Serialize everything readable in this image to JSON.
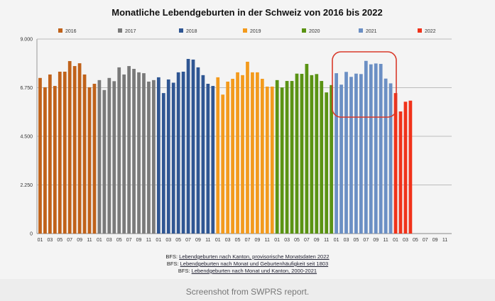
{
  "chart_data": {
    "type": "bar",
    "title": "Monatliche Lebendgeburten in der Schweiz von 2016 bis 2022",
    "xlabel": "",
    "ylabel": "",
    "ylim": [
      0,
      9000
    ],
    "yticks": [
      "0",
      "2.250",
      "4.500",
      "6.750",
      "9.000"
    ],
    "ytick_values": [
      0,
      2250,
      4500,
      6750,
      9000
    ],
    "xtick_labels": [
      "01",
      "03",
      "05",
      "07",
      "09",
      "11"
    ],
    "grid": true,
    "legend_position": "top",
    "highlight": {
      "series": "2021",
      "note": "red rounded box around 2021 bars"
    },
    "series": [
      {
        "name": "2016",
        "color": "#c0621a",
        "values": [
          7200,
          6770,
          7360,
          6830,
          7490,
          7490,
          7980,
          7750,
          7880,
          7360,
          6770,
          6930
        ]
      },
      {
        "name": "2017",
        "color": "#7a7a7a",
        "values": [
          7100,
          6640,
          7200,
          7050,
          7690,
          7360,
          7750,
          7620,
          7460,
          7420,
          7030,
          7100
        ]
      },
      {
        "name": "2018",
        "color": "#2f5693",
        "values": [
          7230,
          6500,
          7130,
          6980,
          7460,
          7490,
          8080,
          8050,
          7690,
          7330,
          6930,
          6830
        ]
      },
      {
        "name": "2019",
        "color": "#f39a1c",
        "values": [
          7230,
          6430,
          7030,
          7160,
          7460,
          7330,
          7950,
          7460,
          7460,
          7160,
          6800,
          6800
        ]
      },
      {
        "name": "2020",
        "color": "#5a9313",
        "values": [
          7100,
          6760,
          7060,
          7060,
          7400,
          7390,
          7850,
          7330,
          7380,
          7060,
          6530,
          6870
        ]
      },
      {
        "name": "2021",
        "color": "#6b8fc4",
        "values": [
          7420,
          6890,
          7480,
          7250,
          7400,
          7380,
          7990,
          7830,
          7870,
          7850,
          7170,
          6950
        ]
      },
      {
        "name": "2022",
        "color": "#f0321a",
        "values": [
          6500,
          5650,
          6100,
          6150
        ]
      }
    ]
  },
  "sources": {
    "prefix": "BFS:",
    "links": [
      "Lebendgeburten nach Kanton, provisorische Monatsdaten 2022",
      "Lebendgeburten nach Monat und Geburtenhäufigkeit seit 1803",
      "Lebendgeburten nach Monat und Kanton, 2000-2021"
    ]
  },
  "caption": "Screenshot from SWPRS report."
}
